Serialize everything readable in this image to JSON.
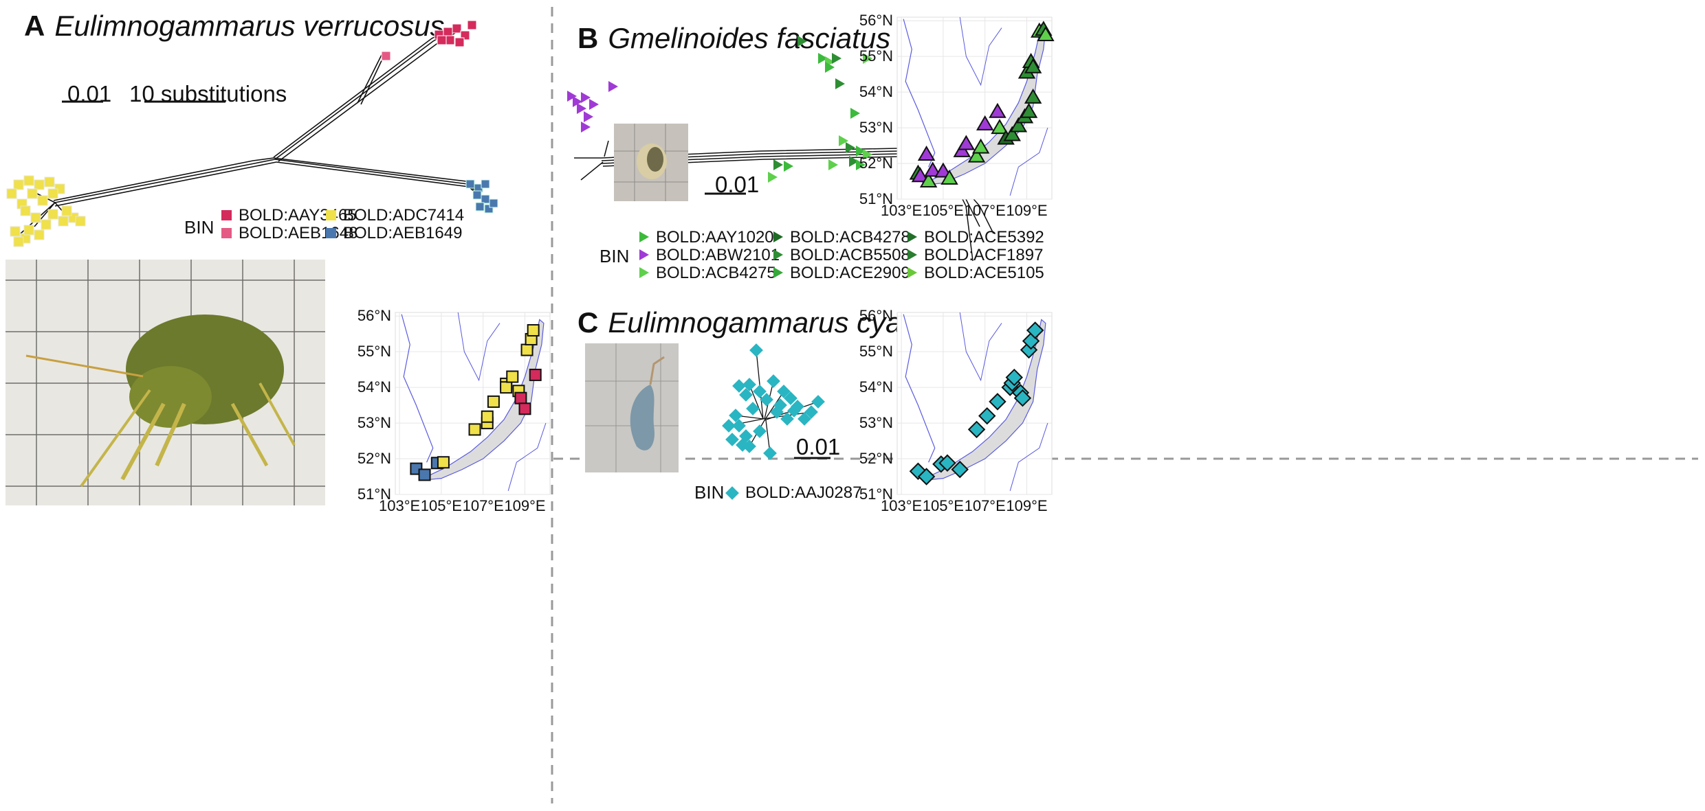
{
  "panelA": {
    "letter": "A",
    "species": "Eulimnogammarus verrucosus",
    "scale_dist": "0.01",
    "scale_subs": "10 substitutions",
    "bin_title": "BIN",
    "bins": [
      {
        "label": "BOLD:AAY3465",
        "color": "#d42a5c"
      },
      {
        "label": "BOLD:AEB1648",
        "color": "#e55a84"
      },
      {
        "label": "BOLD:ADC7414",
        "color": "#f0e04a"
      },
      {
        "label": "BOLD:AEB1649",
        "color": "#4a78ae"
      }
    ]
  },
  "panelB": {
    "letter": "B",
    "species": "Gmelinoides fasciatus",
    "scale_dist": "0.01",
    "bin_title": "BIN",
    "bins": [
      {
        "label": "BOLD:AAY1020",
        "color": "#3cba3c"
      },
      {
        "label": "BOLD:ABW2101",
        "color": "#a03ad6"
      },
      {
        "label": "BOLD:ACB4275",
        "color": "#5ed04c"
      },
      {
        "label": "BOLD:ACB4278",
        "color": "#1f6a24"
      },
      {
        "label": "BOLD:ACB5508",
        "color": "#2e8e34"
      },
      {
        "label": "BOLD:ACE2909",
        "color": "#36a83a"
      },
      {
        "label": "BOLD:ACE5392",
        "color": "#236e2a"
      },
      {
        "label": "BOLD:ACF1897",
        "color": "#2b7e2f"
      },
      {
        "label": "BOLD:ACE5105",
        "color": "#6bc73a"
      }
    ]
  },
  "panelC": {
    "letter": "C",
    "species": "Eulimnogammarus cyaneus",
    "scale_dist": "0.01",
    "bin_title": "BIN",
    "bins": [
      {
        "label": "BOLD:AAJ0287",
        "color": "#2ab5c2"
      }
    ]
  },
  "map": {
    "lat_ticks": [
      "56°N",
      "55°N",
      "54°N",
      "53°N",
      "52°N",
      "51°N"
    ],
    "lon_ticks": [
      "103°E",
      "105°E",
      "107°E",
      "109°E"
    ]
  }
}
